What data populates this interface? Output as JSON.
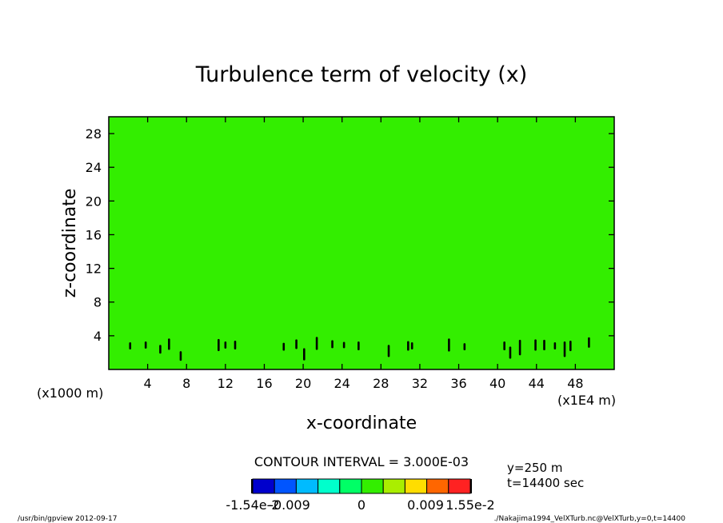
{
  "chart_data": {
    "type": "heatmap",
    "title": "Turbulence term of velocity (x)",
    "xlabel": "x-coordinate",
    "ylabel": "z-coordinate",
    "x_unit_left": "(x1000 m)",
    "x_unit_right": "(x1E4 m)",
    "xlim": [
      0,
      52
    ],
    "ylim": [
      0,
      30
    ],
    "x_ticks": [
      4,
      8,
      12,
      16,
      20,
      24,
      28,
      32,
      36,
      40,
      44,
      48
    ],
    "y_ticks": [
      4,
      8,
      12,
      16,
      20,
      24,
      28
    ],
    "field_color": "#33ee00",
    "contour_interval": "CONTOUR INTERVAL = 3.000E-03",
    "colorbar": {
      "colors": [
        "#0000cc",
        "#0055ff",
        "#00bbff",
        "#00ffcc",
        "#00ff66",
        "#33ee00",
        "#aaee00",
        "#ffdd00",
        "#ff6600",
        "#ff2222"
      ],
      "labels": [
        "-1.54e-2",
        "-0.009",
        "0",
        "0.009",
        "1.55e-2"
      ]
    },
    "info": [
      "y=250 m",
      "t=14400 sec"
    ],
    "features": [
      {
        "x": 2.2,
        "z": 2.8,
        "h": 0.6
      },
      {
        "x": 3.8,
        "z": 2.9,
        "h": 0.6
      },
      {
        "x": 5.3,
        "z": 2.4,
        "h": 0.8
      },
      {
        "x": 6.2,
        "z": 3.0,
        "h": 1.1
      },
      {
        "x": 7.4,
        "z": 1.6,
        "h": 0.9
      },
      {
        "x": 11.3,
        "z": 2.9,
        "h": 1.2
      },
      {
        "x": 12.0,
        "z": 2.9,
        "h": 0.6
      },
      {
        "x": 13.0,
        "z": 2.9,
        "h": 0.8
      },
      {
        "x": 18.0,
        "z": 2.7,
        "h": 0.7
      },
      {
        "x": 19.3,
        "z": 3.0,
        "h": 0.9
      },
      {
        "x": 20.1,
        "z": 1.8,
        "h": 1.2
      },
      {
        "x": 21.4,
        "z": 3.1,
        "h": 1.3
      },
      {
        "x": 23.0,
        "z": 3.0,
        "h": 0.7
      },
      {
        "x": 24.2,
        "z": 2.9,
        "h": 0.5
      },
      {
        "x": 25.7,
        "z": 2.8,
        "h": 0.8
      },
      {
        "x": 28.8,
        "z": 2.2,
        "h": 1.2
      },
      {
        "x": 30.8,
        "z": 2.8,
        "h": 0.9
      },
      {
        "x": 31.2,
        "z": 2.8,
        "h": 0.6
      },
      {
        "x": 35.0,
        "z": 2.9,
        "h": 1.3
      },
      {
        "x": 36.6,
        "z": 2.7,
        "h": 0.6
      },
      {
        "x": 40.7,
        "z": 2.8,
        "h": 0.8
      },
      {
        "x": 41.3,
        "z": 2.0,
        "h": 1.2
      },
      {
        "x": 42.3,
        "z": 2.6,
        "h": 1.6
      },
      {
        "x": 43.9,
        "z": 2.9,
        "h": 1.1
      },
      {
        "x": 44.8,
        "z": 2.9,
        "h": 1.0
      },
      {
        "x": 45.9,
        "z": 2.8,
        "h": 0.6
      },
      {
        "x": 46.9,
        "z": 2.4,
        "h": 1.6
      },
      {
        "x": 47.5,
        "z": 2.8,
        "h": 1.0
      },
      {
        "x": 49.4,
        "z": 3.2,
        "h": 1.0
      }
    ]
  },
  "footer_left": "/usr/bin/gpview   2012-09-17",
  "footer_right": "./Nakajima1994_VelXTurb.nc@VelXTurb,y=0,t=14400"
}
